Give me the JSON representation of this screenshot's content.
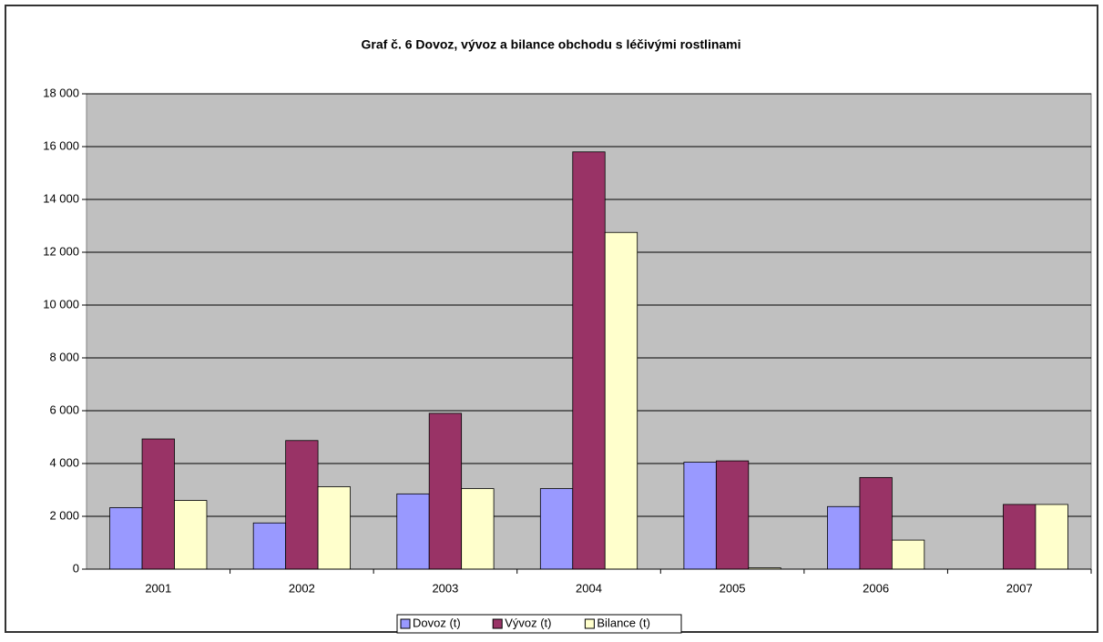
{
  "chart_data": {
    "type": "bar",
    "title": "Graf č. 6  Dovoz, vývoz a bilance obchodu  s léčivými rostlinami",
    "categories": [
      "2001",
      "2002",
      "2003",
      "2004",
      "2005",
      "2006",
      "2007"
    ],
    "series": [
      {
        "name": "Dovoz (t)",
        "color": "#9999ff",
        "values": [
          2330,
          1750,
          2850,
          3050,
          4050,
          2370,
          0
        ]
      },
      {
        "name": "Vývoz (t)",
        "color": "#993366",
        "values": [
          4930,
          4870,
          5900,
          15800,
          4100,
          3470,
          2450
        ]
      },
      {
        "name": "Bilance (t)",
        "color": "#ffffcc",
        "values": [
          2600,
          3120,
          3050,
          12750,
          50,
          1100,
          2450
        ]
      }
    ],
    "ylim": [
      0,
      18000
    ],
    "yticks": [
      0,
      {
        "value": 2000,
        "label": "2 000"
      },
      {
        "value": 4000,
        "label": "4 000"
      },
      {
        "value": 6000,
        "label": "6 000"
      },
      {
        "value": 8000,
        "label": "8 000"
      },
      {
        "value": 10000,
        "label": "10 000"
      },
      {
        "value": 12000,
        "label": "12 000"
      },
      {
        "value": 14000,
        "label": "14 000"
      },
      {
        "value": 16000,
        "label": "16 000"
      },
      {
        "value": 18000,
        "label": "18 000"
      }
    ],
    "grid": true,
    "legend": "bottom"
  }
}
